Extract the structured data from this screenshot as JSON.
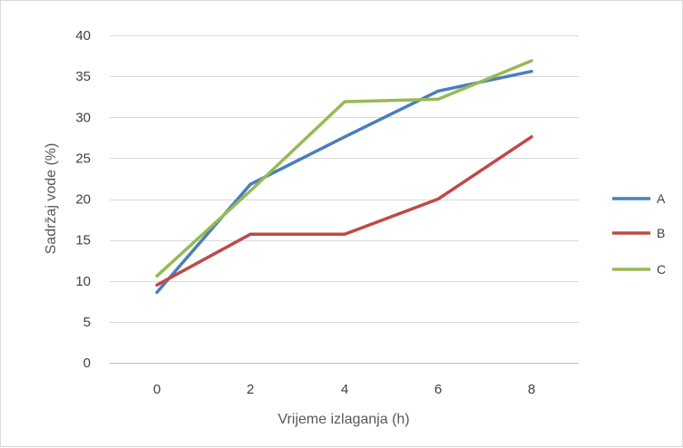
{
  "chart_data": {
    "type": "line",
    "title": "",
    "xlabel": "Vrijeme izlaganja (h)",
    "ylabel": "Sadržaj vode (%)",
    "x": [
      0,
      2,
      4,
      6,
      8
    ],
    "x_ticks": [
      "0",
      "2",
      "4",
      "6",
      "8"
    ],
    "y_ticks": [
      "0",
      "5",
      "10",
      "15",
      "20",
      "25",
      "30",
      "35",
      "40"
    ],
    "ylim": [
      0,
      40
    ],
    "grid": true,
    "legend_position": "right",
    "series": [
      {
        "name": "A",
        "color": "#4a7ebb",
        "values": [
          8.6,
          21.8,
          27.6,
          33.2,
          35.6
        ]
      },
      {
        "name": "B",
        "color": "#be4b48",
        "values": [
          9.5,
          15.7,
          15.7,
          20.0,
          27.6
        ]
      },
      {
        "name": "C",
        "color": "#98b954",
        "values": [
          10.6,
          21.0,
          31.9,
          32.2,
          36.9
        ]
      }
    ]
  }
}
